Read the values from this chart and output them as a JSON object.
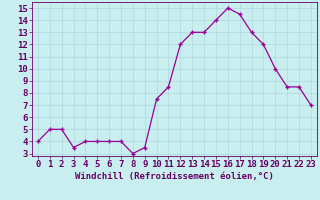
{
  "x": [
    0,
    1,
    2,
    3,
    4,
    5,
    6,
    7,
    8,
    9,
    10,
    11,
    12,
    13,
    14,
    15,
    16,
    17,
    18,
    19,
    20,
    21,
    22,
    23
  ],
  "y": [
    4,
    5,
    5,
    3.5,
    4,
    4,
    4,
    4,
    3,
    3.5,
    7.5,
    8.5,
    12,
    13,
    13,
    14,
    15,
    14.5,
    13,
    12,
    10,
    8.5,
    8.5,
    7
  ],
  "line_color": "#990099",
  "marker": "+",
  "bg_color": "#c8eef0",
  "grid_color": "#b0d8dc",
  "xlabel": "Windchill (Refroidissement éolien,°C)",
  "ylabel_ticks": [
    3,
    4,
    5,
    6,
    7,
    8,
    9,
    10,
    11,
    12,
    13,
    14,
    15
  ],
  "xlim": [
    -0.5,
    23.5
  ],
  "ylim": [
    2.8,
    15.5
  ],
  "xlabel_fontsize": 6.5,
  "tick_fontsize": 6.5,
  "axes_color": "#660066"
}
